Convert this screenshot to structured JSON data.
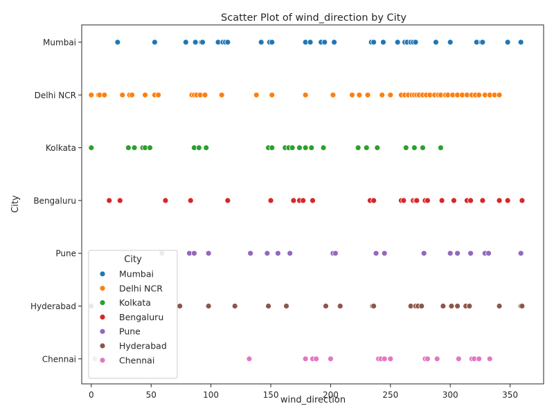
{
  "chart_data": {
    "type": "scatter",
    "title": "Scatter Plot of wind_direction by City",
    "xlabel": "wind_direction",
    "ylabel": "City",
    "xlim": [
      -8,
      378
    ],
    "xticks": [
      0,
      50,
      100,
      150,
      200,
      250,
      300,
      350
    ],
    "categories": [
      "Mumbai",
      "Delhi NCR",
      "Kolkata",
      "Bengaluru",
      "Pune",
      "Hyderabad",
      "Chennai"
    ],
    "grid": false,
    "legend": {
      "title": "City",
      "placement": "lower-left"
    },
    "series": [
      {
        "name": "Mumbai",
        "color": "#1f77b4",
        "x": [
          22,
          53,
          79,
          87,
          92,
          93,
          106,
          110,
          112,
          114,
          142,
          149,
          151,
          179,
          183,
          192,
          195,
          203,
          234,
          236,
          244,
          256,
          262,
          264,
          267,
          269,
          271,
          288,
          300,
          322,
          326,
          327,
          348,
          359
        ]
      },
      {
        "name": "Delhi NCR",
        "color": "#ff7f0e",
        "x": [
          0,
          6,
          7,
          11,
          26,
          32,
          34,
          45,
          53,
          56,
          84,
          86,
          88,
          91,
          95,
          109,
          138,
          151,
          179,
          202,
          218,
          224,
          231,
          243,
          250,
          259,
          262,
          265,
          268,
          270,
          272,
          274,
          277,
          280,
          283,
          287,
          290,
          292,
          296,
          298,
          302,
          306,
          310,
          314,
          318,
          321,
          324,
          329,
          333,
          337,
          341
        ]
      },
      {
        "name": "Kolkata",
        "color": "#2ca02c",
        "x": [
          0,
          31,
          36,
          43,
          45,
          49,
          86,
          90,
          96,
          148,
          151,
          162,
          165,
          168,
          174,
          179,
          184,
          194,
          223,
          230,
          239,
          263,
          270,
          277,
          292
        ]
      },
      {
        "name": "Bengaluru",
        "color": "#d62728",
        "x": [
          15,
          24,
          62,
          83,
          114,
          150,
          169,
          174,
          177,
          185,
          233,
          236,
          259,
          261,
          269,
          271,
          272,
          279,
          281,
          293,
          303,
          314,
          317,
          327,
          341,
          348,
          360
        ]
      },
      {
        "name": "Pune",
        "color": "#9467bd",
        "x": [
          59,
          82,
          86,
          98,
          133,
          147,
          156,
          166,
          202,
          204,
          238,
          245,
          278,
          300,
          306,
          317,
          329,
          332,
          359
        ]
      },
      {
        "name": "Hyderabad",
        "color": "#8c564b",
        "x": [
          0,
          74,
          98,
          120,
          148,
          163,
          196,
          208,
          235,
          236,
          267,
          271,
          273,
          276,
          294,
          301,
          306,
          313,
          316,
          341,
          359,
          360
        ]
      },
      {
        "name": "Chennai",
        "color": "#e377c2",
        "x": [
          3,
          49,
          132,
          179,
          185,
          188,
          200,
          240,
          242,
          245,
          250,
          279,
          281,
          289,
          307,
          318,
          320,
          324,
          333
        ]
      }
    ]
  }
}
